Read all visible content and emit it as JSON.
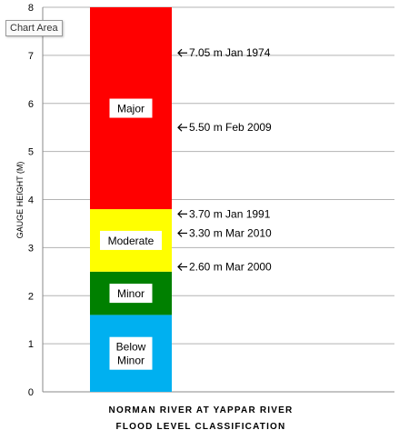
{
  "tooltip": "Chart Area",
  "chart_data": {
    "type": "bar",
    "stacked": true,
    "title_lines": [
      "NORMAN RIVER AT YAPPAR RIVER",
      "FLOOD LEVEL CLASSIFICATION"
    ],
    "ylabel": "GAUGE HEIGHT (M)",
    "ylim": [
      0,
      8
    ],
    "yticks": [
      "0",
      "1",
      "2",
      "3",
      "4",
      "5",
      "6",
      "7",
      "8"
    ],
    "grid": true,
    "bands": [
      {
        "label": "Below\nMinor",
        "from": 0,
        "to": 1.6,
        "color": "#00b0f0"
      },
      {
        "label": "Minor",
        "from": 1.6,
        "to": 2.5,
        "color": "#008000"
      },
      {
        "label": "Moderate",
        "from": 2.5,
        "to": 3.8,
        "color": "#ffff00"
      },
      {
        "label": "Major",
        "from": 3.8,
        "to": 8,
        "color": "#ff0000"
      }
    ],
    "annotations": [
      {
        "value": 7.05,
        "text": "7.05 m Jan 1974"
      },
      {
        "value": 5.5,
        "text": "5.50 m Feb 2009"
      },
      {
        "value": 3.7,
        "text": "3.70 m Jan 1991"
      },
      {
        "value": 3.3,
        "text": "3.30 m Mar 2010"
      },
      {
        "value": 2.6,
        "text": "2.60 m Mar 2000"
      }
    ]
  }
}
